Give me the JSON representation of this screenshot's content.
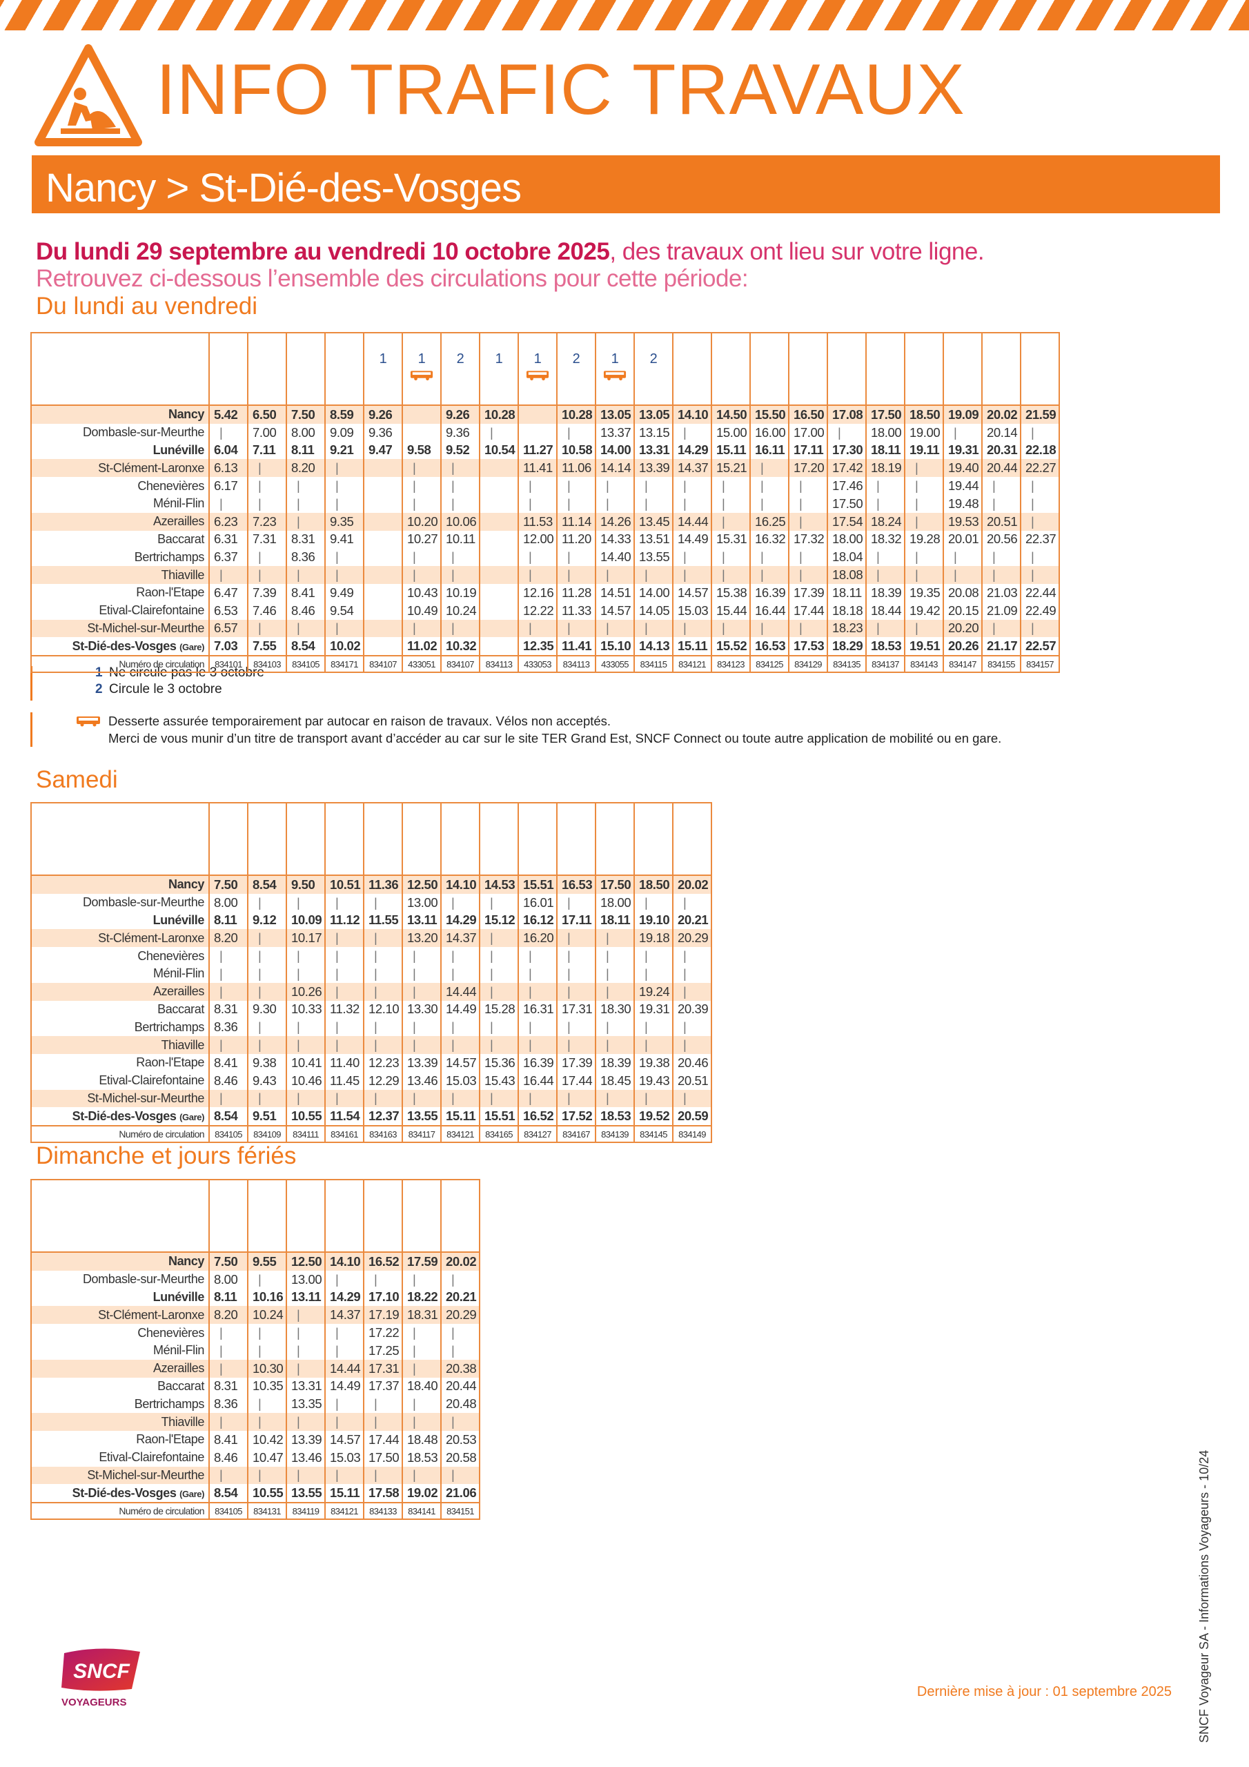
{
  "header": {
    "title": "INFO TRAFIC TRAVAUX",
    "route": "Nancy > St-Dié-des-Vosges"
  },
  "intro": {
    "period": "Du lundi 29 septembre au vendredi 10 octobre 2025",
    "rest": ", des travaux ont lieu sur votre ligne.",
    "line2": "Retrouvez ci-dessous l’ensemble des circulations pour cette période:"
  },
  "stations": [
    "Nancy",
    "Dombasle-sur-Meurthe",
    "Lunéville",
    "St-Clément-Laronxe",
    "Chenevières",
    "Ménil-Flin",
    "Azerailles",
    "Baccarat",
    "Bertrichamps",
    "Thiaville",
    "Raon-l'Etape",
    "Etival-Clairefontaine",
    "St-Michel-sur-Meurthe",
    "St-Dié-des-Vosges"
  ],
  "last_station_suffix": "(Gare)",
  "number_label": "Numéro de circulation",
  "bold_rows": [
    0,
    2,
    13
  ],
  "shaded_rows": [
    0,
    3,
    6,
    9,
    12
  ],
  "sections": [
    {
      "title": "Du lundi au vendredi",
      "columns": [
        {
          "times": [
            "5.42",
            "|",
            "6.04",
            "6.13",
            "6.17",
            "|",
            "6.23",
            "6.31",
            "6.37",
            "|",
            "6.47",
            "6.53",
            "6.57",
            "7.03"
          ],
          "number": "834101"
        },
        {
          "times": [
            "6.50",
            "7.00",
            "7.11",
            "|",
            "|",
            "|",
            "7.23",
            "7.31",
            "|",
            "|",
            "7.39",
            "7.46",
            "|",
            "7.55"
          ],
          "number": "834103"
        },
        {
          "times": [
            "7.50",
            "8.00",
            "8.11",
            "8.20",
            "|",
            "|",
            "|",
            "8.31",
            "8.36",
            "|",
            "8.41",
            "8.46",
            "|",
            "8.54"
          ],
          "number": "834105"
        },
        {
          "times": [
            "8.59",
            "9.09",
            "9.21",
            "|",
            "|",
            "|",
            "9.35",
            "9.41",
            "|",
            "|",
            "9.49",
            "9.54",
            "|",
            "10.02"
          ],
          "number": "834171"
        },
        {
          "note": "1",
          "times": [
            "9.26",
            "9.36",
            "9.47",
            null,
            null,
            null,
            null,
            null,
            null,
            null,
            null,
            null,
            null,
            null
          ],
          "number": "834107"
        },
        {
          "note": "1",
          "bus": true,
          "times": [
            null,
            null,
            "9.58",
            "|",
            "|",
            "|",
            "10.20",
            "10.27",
            "|",
            "|",
            "10.43",
            "10.49",
            "|",
            "11.02"
          ],
          "number": "433051"
        },
        {
          "note": "2",
          "times": [
            "9.26",
            "9.36",
            "9.52",
            "|",
            "|",
            "|",
            "10.06",
            "10.11",
            "|",
            "|",
            "10.19",
            "10.24",
            "|",
            "10.32"
          ],
          "number": "834107"
        },
        {
          "note": "1",
          "times": [
            "10.28",
            "|",
            "10.54",
            null,
            null,
            null,
            null,
            null,
            null,
            null,
            null,
            null,
            null,
            null
          ],
          "number": "834113"
        },
        {
          "note": "1",
          "bus": true,
          "times": [
            null,
            null,
            "11.27",
            "11.41",
            "|",
            "|",
            "11.53",
            "12.00",
            "|",
            "|",
            "12.16",
            "12.22",
            "|",
            "12.35"
          ],
          "number": "433053"
        },
        {
          "note": "2",
          "times": [
            "10.28",
            "|",
            "10.58",
            "11.06",
            "|",
            "|",
            "11.14",
            "11.20",
            "|",
            "|",
            "11.28",
            "11.33",
            "|",
            "11.41"
          ],
          "number": "834113"
        },
        {
          "note": "1",
          "bus": true,
          "times": [
            "13.05",
            "13.37",
            "14.00",
            "14.14",
            "|",
            "|",
            "14.26",
            "14.33",
            "14.40",
            "|",
            "14.51",
            "14.57",
            "|",
            "15.10"
          ],
          "number": "433055"
        },
        {
          "note": "2",
          "times": [
            "13.05",
            "13.15",
            "13.31",
            "13.39",
            "|",
            "|",
            "13.45",
            "13.51",
            "13.55",
            "|",
            "14.00",
            "14.05",
            "|",
            "14.13"
          ],
          "number": "834115"
        },
        {
          "times": [
            "14.10",
            "|",
            "14.29",
            "14.37",
            "|",
            "|",
            "14.44",
            "14.49",
            "|",
            "|",
            "14.57",
            "15.03",
            "|",
            "15.11"
          ],
          "number": "834121"
        },
        {
          "times": [
            "14.50",
            "15.00",
            "15.11",
            "15.21",
            "|",
            "|",
            "|",
            "15.31",
            "|",
            "|",
            "15.38",
            "15.44",
            "|",
            "15.52"
          ],
          "number": "834123"
        },
        {
          "times": [
            "15.50",
            "16.00",
            "16.11",
            "|",
            "|",
            "|",
            "16.25",
            "16.32",
            "|",
            "|",
            "16.39",
            "16.44",
            "|",
            "16.53"
          ],
          "number": "834125"
        },
        {
          "times": [
            "16.50",
            "17.00",
            "17.11",
            "17.20",
            "|",
            "|",
            "|",
            "17.32",
            "|",
            "|",
            "17.39",
            "17.44",
            "|",
            "17.53"
          ],
          "number": "834129"
        },
        {
          "times": [
            "17.08",
            "|",
            "17.30",
            "17.42",
            "17.46",
            "17.50",
            "17.54",
            "18.00",
            "18.04",
            "18.08",
            "18.11",
            "18.18",
            "18.23",
            "18.29"
          ],
          "number": "834135"
        },
        {
          "times": [
            "17.50",
            "18.00",
            "18.11",
            "18.19",
            "|",
            "|",
            "18.24",
            "18.32",
            "|",
            "|",
            "18.39",
            "18.44",
            "|",
            "18.53"
          ],
          "number": "834137"
        },
        {
          "times": [
            "18.50",
            "19.00",
            "19.11",
            "|",
            "|",
            "|",
            "|",
            "19.28",
            "|",
            "|",
            "19.35",
            "19.42",
            "|",
            "19.51"
          ],
          "number": "834143"
        },
        {
          "times": [
            "19.09",
            "|",
            "19.31",
            "19.40",
            "19.44",
            "19.48",
            "19.53",
            "20.01",
            "|",
            "|",
            "20.08",
            "20.15",
            "20.20",
            "20.26"
          ],
          "number": "834147"
        },
        {
          "times": [
            "20.02",
            "20.14",
            "20.31",
            "20.44",
            "|",
            "|",
            "20.51",
            "20.56",
            "|",
            "|",
            "21.03",
            "21.09",
            "|",
            "21.17"
          ],
          "number": "834155"
        },
        {
          "times": [
            "21.59",
            "|",
            "22.18",
            "22.27",
            "|",
            "|",
            "|",
            "22.37",
            "|",
            "|",
            "22.44",
            "22.49",
            "|",
            "22.57"
          ],
          "number": "834157"
        }
      ]
    },
    {
      "title": "Samedi",
      "columns": [
        {
          "times": [
            "7.50",
            "8.00",
            "8.11",
            "8.20",
            "|",
            "|",
            "|",
            "8.31",
            "8.36",
            "|",
            "8.41",
            "8.46",
            "|",
            "8.54"
          ],
          "number": "834105"
        },
        {
          "times": [
            "8.54",
            "|",
            "9.12",
            "|",
            "|",
            "|",
            "|",
            "9.30",
            "|",
            "|",
            "9.38",
            "9.43",
            "|",
            "9.51"
          ],
          "number": "834109"
        },
        {
          "times": [
            "9.50",
            "|",
            "10.09",
            "10.17",
            "|",
            "|",
            "10.26",
            "10.33",
            "|",
            "|",
            "10.41",
            "10.46",
            "|",
            "10.55"
          ],
          "number": "834111"
        },
        {
          "times": [
            "10.51",
            "|",
            "11.12",
            "|",
            "|",
            "|",
            "|",
            "11.32",
            "|",
            "|",
            "11.40",
            "11.45",
            "|",
            "11.54"
          ],
          "number": "834161"
        },
        {
          "times": [
            "11.36",
            "|",
            "11.55",
            "|",
            "|",
            "|",
            "|",
            "12.10",
            "|",
            "|",
            "12.23",
            "12.29",
            "|",
            "12.37"
          ],
          "number": "834163"
        },
        {
          "times": [
            "12.50",
            "13.00",
            "13.11",
            "13.20",
            "|",
            "|",
            "|",
            "13.30",
            "|",
            "|",
            "13.39",
            "13.46",
            "|",
            "13.55"
          ],
          "number": "834117"
        },
        {
          "times": [
            "14.10",
            "|",
            "14.29",
            "14.37",
            "|",
            "|",
            "14.44",
            "14.49",
            "|",
            "|",
            "14.57",
            "15.03",
            "|",
            "15.11"
          ],
          "number": "834121"
        },
        {
          "times": [
            "14.53",
            "|",
            "15.12",
            "|",
            "|",
            "|",
            "|",
            "15.28",
            "|",
            "|",
            "15.36",
            "15.43",
            "|",
            "15.51"
          ],
          "number": "834165"
        },
        {
          "times": [
            "15.51",
            "16.01",
            "16.12",
            "16.20",
            "|",
            "|",
            "|",
            "16.31",
            "|",
            "|",
            "16.39",
            "16.44",
            "|",
            "16.52"
          ],
          "number": "834127"
        },
        {
          "times": [
            "16.53",
            "|",
            "17.11",
            "|",
            "|",
            "|",
            "|",
            "17.31",
            "|",
            "|",
            "17.39",
            "17.44",
            "|",
            "17.52"
          ],
          "number": "834167"
        },
        {
          "times": [
            "17.50",
            "18.00",
            "18.11",
            "|",
            "|",
            "|",
            "|",
            "18.30",
            "|",
            "|",
            "18.39",
            "18.45",
            "|",
            "18.53"
          ],
          "number": "834139"
        },
        {
          "times": [
            "18.50",
            "|",
            "19.10",
            "19.18",
            "|",
            "|",
            "19.24",
            "19.31",
            "|",
            "|",
            "19.38",
            "19.43",
            "|",
            "19.52"
          ],
          "number": "834145"
        },
        {
          "times": [
            "20.02",
            "|",
            "20.21",
            "20.29",
            "|",
            "|",
            "|",
            "20.39",
            "|",
            "|",
            "20.46",
            "20.51",
            "|",
            "20.59"
          ],
          "number": "834149"
        }
      ]
    },
    {
      "title": "Dimanche et jours fériés",
      "columns": [
        {
          "times": [
            "7.50",
            "8.00",
            "8.11",
            "8.20",
            "|",
            "|",
            "|",
            "8.31",
            "8.36",
            "|",
            "8.41",
            "8.46",
            "|",
            "8.54"
          ],
          "number": "834105"
        },
        {
          "times": [
            "9.55",
            "|",
            "10.16",
            "10.24",
            "|",
            "|",
            "10.30",
            "10.35",
            "|",
            "|",
            "10.42",
            "10.47",
            "|",
            "10.55"
          ],
          "number": "834131"
        },
        {
          "times": [
            "12.50",
            "13.00",
            "13.11",
            "|",
            "|",
            "|",
            "|",
            "13.31",
            "13.35",
            "|",
            "13.39",
            "13.46",
            "|",
            "13.55"
          ],
          "number": "834119"
        },
        {
          "times": [
            "14.10",
            "|",
            "14.29",
            "14.37",
            "|",
            "|",
            "14.44",
            "14.49",
            "|",
            "|",
            "14.57",
            "15.03",
            "|",
            "15.11"
          ],
          "number": "834121"
        },
        {
          "times": [
            "16.52",
            "|",
            "17.10",
            "17.19",
            "17.22",
            "17.25",
            "17.31",
            "17.37",
            "|",
            "|",
            "17.44",
            "17.50",
            "|",
            "17.58"
          ],
          "number": "834133"
        },
        {
          "times": [
            "17.59",
            "|",
            "18.22",
            "18.31",
            "|",
            "|",
            "|",
            "18.40",
            "|",
            "|",
            "18.48",
            "18.53",
            "|",
            "19.02"
          ],
          "number": "834141"
        },
        {
          "times": [
            "20.02",
            "|",
            "20.21",
            "20.29",
            "|",
            "|",
            "20.38",
            "20.44",
            "20.48",
            "|",
            "20.53",
            "20.58",
            "|",
            "21.06"
          ],
          "number": "834151"
        }
      ]
    }
  ],
  "legend": [
    {
      "key": "1",
      "text": "Ne circule pas le 3 octobre"
    },
    {
      "key": "2",
      "text": "Circule le 3 octobre"
    }
  ],
  "bus_note": [
    "Desserte assurée temporairement par autocar en raison de travaux. Vélos non acceptés.",
    "Merci de vous munir d’un titre de transport avant d’accéder au car sur le site TER Grand Est, SNCF Connect ou toute autre application de mobilité ou en gare."
  ],
  "footer": {
    "logo": "SNCF",
    "logo_sub": "VOYAGEURS",
    "updated": "Dernière mise à jour : 01 septembre 2025",
    "side": "SNCF Voyageur SA - Informations Voyageurs - 10/24"
  }
}
